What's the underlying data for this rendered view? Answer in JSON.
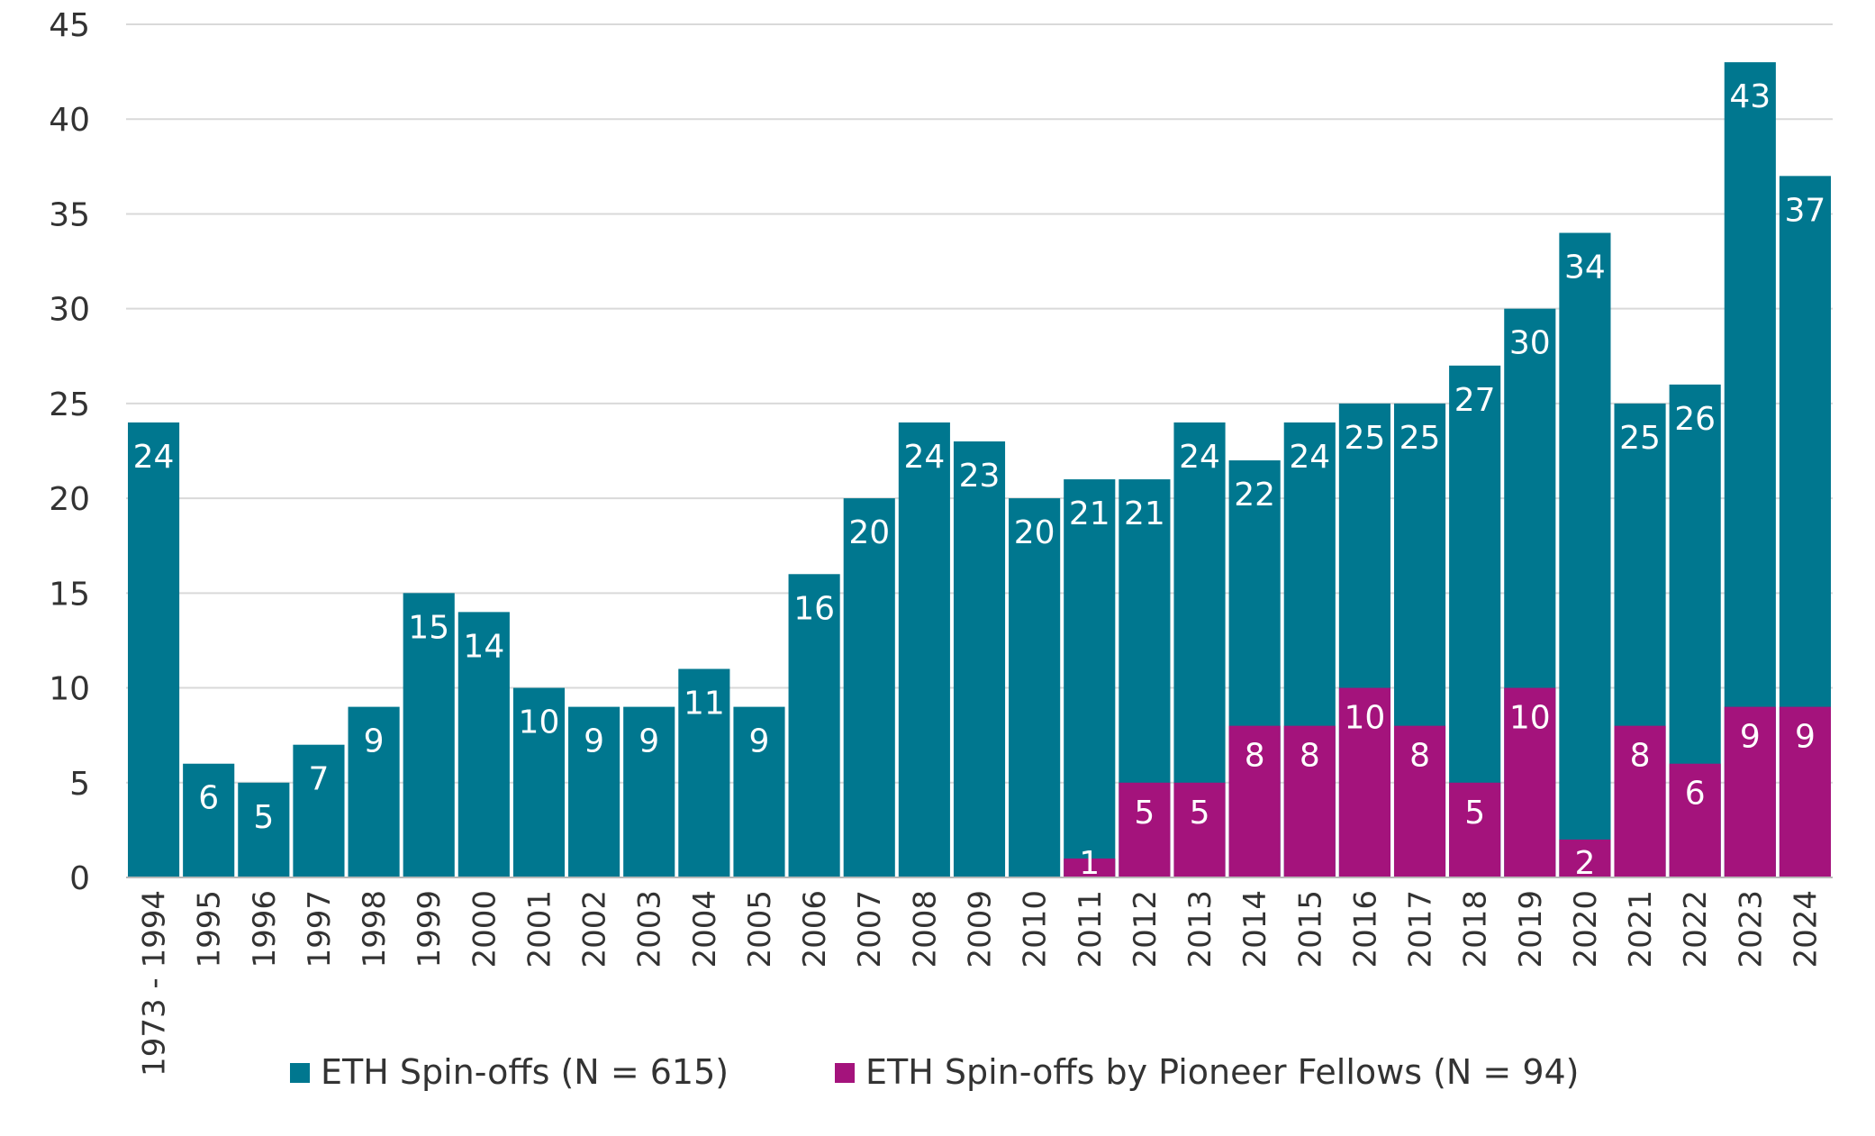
{
  "chart_data": {
    "type": "bar",
    "stacked": false,
    "overlay": true,
    "categories": [
      "1973 - 1994",
      "1995",
      "1996",
      "1997",
      "1998",
      "1999",
      "2000",
      "2001",
      "2002",
      "2003",
      "2004",
      "2005",
      "2006",
      "2007",
      "2008",
      "2009",
      "2010",
      "2011",
      "2012",
      "2013",
      "2014",
      "2015",
      "2016",
      "2017",
      "2018",
      "2019",
      "2020",
      "2021",
      "2022",
      "2023",
      "2024"
    ],
    "series": [
      {
        "name": "ETH Spin-offs (N = 615)",
        "color": "#00778F",
        "values": [
          24,
          6,
          5,
          7,
          9,
          15,
          14,
          10,
          9,
          9,
          11,
          9,
          16,
          20,
          24,
          23,
          20,
          21,
          21,
          24,
          22,
          24,
          25,
          25,
          27,
          30,
          34,
          25,
          26,
          43,
          37
        ]
      },
      {
        "name": "ETH Spin-offs by Pioneer Fellows (N = 94)",
        "color": "#A4137C",
        "values": [
          null,
          null,
          null,
          null,
          null,
          null,
          null,
          null,
          null,
          null,
          null,
          null,
          null,
          null,
          null,
          null,
          null,
          1,
          5,
          5,
          8,
          8,
          10,
          8,
          5,
          10,
          2,
          8,
          6,
          9,
          9
        ]
      }
    ],
    "title": "",
    "xlabel": "",
    "ylabel": "",
    "ylim": [
      0,
      45
    ],
    "yticks": [
      0,
      5,
      10,
      15,
      20,
      25,
      30,
      35,
      40,
      45
    ],
    "grid": true,
    "legend": "bottom"
  }
}
